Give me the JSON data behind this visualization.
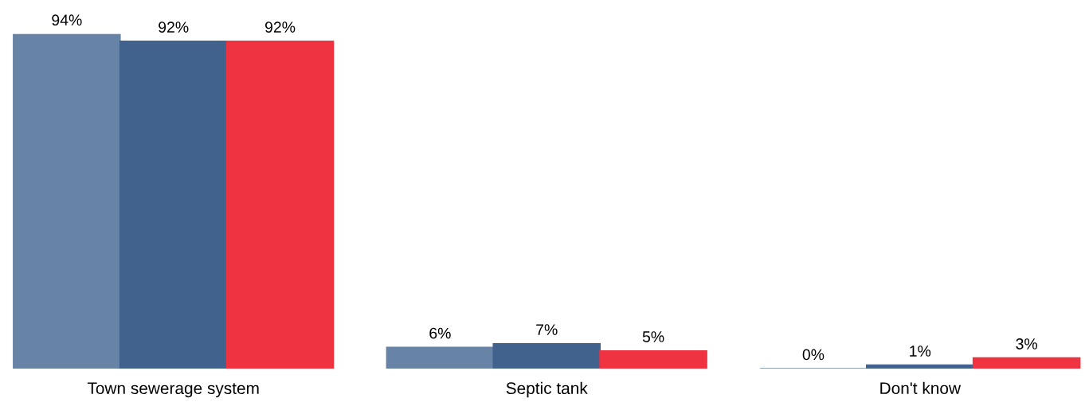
{
  "chart_data": {
    "type": "bar",
    "categories": [
      "Town sewerage system",
      "Septic tank",
      "Don't know"
    ],
    "series": [
      {
        "color": "#6783a6",
        "values": [
          94,
          6,
          0
        ],
        "value_labels": [
          "94%",
          "6%",
          "0%"
        ]
      },
      {
        "color": "#42628e",
        "values": [
          92,
          7,
          1
        ],
        "value_labels": [
          "92%",
          "7%",
          "1%"
        ]
      },
      {
        "color": "#ef3340",
        "values": [
          92,
          5,
          3
        ],
        "value_labels": [
          "92%",
          "5%",
          "3%"
        ]
      }
    ],
    "grid": false,
    "legend": false
  }
}
